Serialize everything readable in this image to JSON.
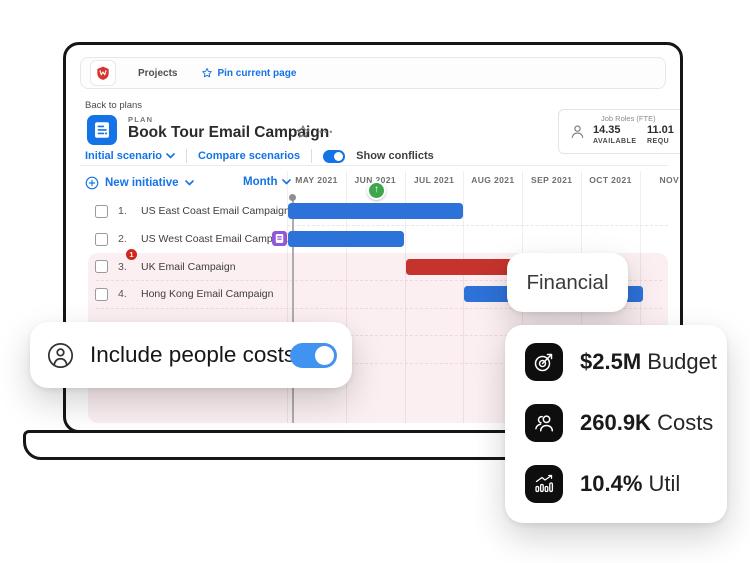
{
  "window": {
    "nav_projects": "Projects",
    "nav_pin": "Pin current page"
  },
  "header": {
    "back_link": "Back to plans",
    "plan_label": "PLAN",
    "title": "Book Tour Email Campaign",
    "ellipsis": "•••",
    "scenario_link": "Initial scenario",
    "compare_link": "Compare scenarios",
    "show_conflicts_label": "Show conflicts",
    "show_conflicts_on": true,
    "job_roles": {
      "title": "Job Roles (FTE)",
      "available_value": "14.35",
      "available_label": "AVAILABLE",
      "required_value": "11.01",
      "required_label": "REQU"
    }
  },
  "toolbar": {
    "new_initiative_label": "New initiative",
    "zoom_label": "Month"
  },
  "timeline": {
    "months": [
      "MAY 2021",
      "JUN 2021",
      "JUL 2021",
      "AUG 2021",
      "SEP 2021",
      "OCT 2021",
      "NOV"
    ],
    "scenario_marker": "up-arrow"
  },
  "rows": [
    {
      "num": "1.",
      "label": "US East Coast Email Campaign",
      "bar": {
        "start": 0,
        "span": 3,
        "color": "#2D72D9"
      }
    },
    {
      "num": "2.",
      "label": "US West Coast Email Campai...",
      "badge": "scenario-note-icon",
      "bar": {
        "start": 0,
        "span": 2,
        "color": "#2D72D9"
      }
    },
    {
      "num": "3.",
      "label": "UK Email Campaign",
      "alert": "1",
      "conflict": true,
      "bar": {
        "start": 2,
        "span": 2.6,
        "color": "#C5332D"
      }
    },
    {
      "num": "4.",
      "label": "Hong Kong Email Campaign",
      "conflict": true,
      "bar": {
        "start": 3,
        "span": 3.07,
        "color": "#2D72D9"
      }
    }
  ],
  "overlays": {
    "financial_tooltip": "Financial",
    "include_people_costs": {
      "label": "Include people costs",
      "on": true
    },
    "stats": [
      {
        "icon": "target-icon",
        "value": "$2.5M",
        "unit": "Budget"
      },
      {
        "icon": "people-icon",
        "value": "260.9K",
        "unit": "Costs"
      },
      {
        "icon": "chart-icon",
        "value": "10.4%",
        "unit": "Util"
      }
    ]
  },
  "colors": {
    "accent_blue": "#1473E6",
    "bar_blue": "#2D72D9",
    "bar_red": "#C5332D",
    "conflict_pink": "#FBEFF1",
    "toggle_blue": "#4193F2",
    "marker_green": "#3DA74E",
    "badge_purple": "#9256D9",
    "alert_red": "#D2261B"
  }
}
